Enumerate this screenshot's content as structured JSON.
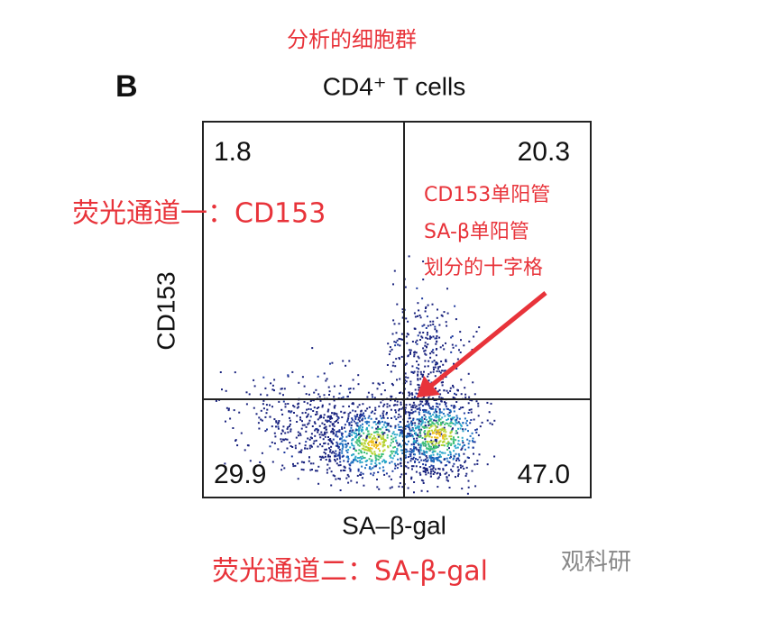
{
  "annotations": {
    "top": "分析的细胞群",
    "channel_one": "荧光通道一：CD153",
    "gating_note": [
      "CD153单阳管",
      "SA-β单阳管",
      "划分的十字格"
    ],
    "channel_two": "荧光通道二：SA-β-gal"
  },
  "panel": {
    "label": "B",
    "title": "CD4⁺ T cells",
    "y_axis_label": "CD153",
    "x_axis_label": "SA–β-gal",
    "quadrants": {
      "upper_left": "1.8",
      "upper_right": "20.3",
      "lower_left": "29.9",
      "lower_right": "47.0"
    }
  },
  "watermark": "观科研"
}
